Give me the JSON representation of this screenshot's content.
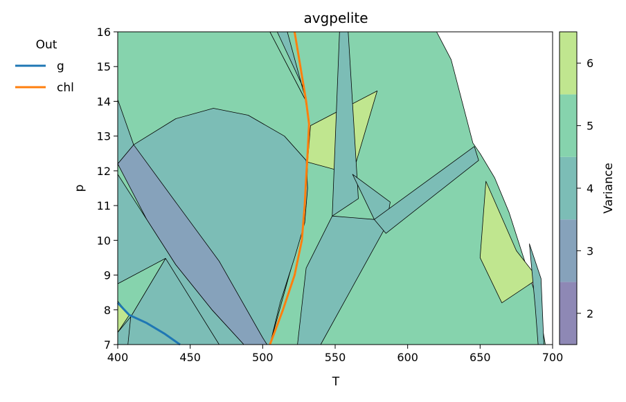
{
  "chart_data": {
    "type": "pseudosection",
    "title": "avgpelite",
    "xlabel": "T",
    "ylabel": "p",
    "xlim": [
      400,
      700
    ],
    "ylim": [
      7,
      16
    ],
    "xticks": [
      "400",
      "450",
      "500",
      "550",
      "600",
      "650",
      "700"
    ],
    "yticks": [
      "7",
      "8",
      "9",
      "10",
      "11",
      "12",
      "13",
      "14",
      "15",
      "16"
    ],
    "legend": {
      "title": "Out",
      "placement": "upper-left-outside",
      "entries": [
        {
          "label": "g",
          "color": "#1f77b4"
        },
        {
          "label": "chl",
          "color": "#ff7f0e"
        }
      ]
    },
    "colorbar": {
      "label": "Variance",
      "ticks": [
        "2",
        "3",
        "4",
        "5",
        "6"
      ],
      "levels": [
        {
          "variance": 2,
          "color": "#8e88b5"
        },
        {
          "variance": 3,
          "color": "#86a2bb"
        },
        {
          "variance": 4,
          "color": "#7cbdb6"
        },
        {
          "variance": 5,
          "color": "#86d3ad"
        },
        {
          "variance": 6,
          "color": "#c0e68f"
        }
      ]
    },
    "series": [
      {
        "name": "g",
        "color": "#1f77b4",
        "points": [
          [
            400,
            8.2
          ],
          [
            408,
            7.85
          ],
          [
            420,
            7.62
          ],
          [
            432,
            7.32
          ],
          [
            443,
            7.0
          ]
        ]
      },
      {
        "name": "chl",
        "color": "#ff7f0e",
        "points": [
          [
            522,
            16.0
          ],
          [
            526,
            15.0
          ],
          [
            530,
            14.0
          ],
          [
            532,
            13.35
          ],
          [
            531,
            12.5
          ],
          [
            530,
            11.8
          ],
          [
            529,
            11.0
          ],
          [
            527,
            10.0
          ],
          [
            522,
            9.0
          ],
          [
            514,
            8.0
          ],
          [
            505,
            7.0
          ]
        ]
      }
    ],
    "fields": [
      {
        "variance": 5,
        "polygon": [
          [
            400,
            16
          ],
          [
            505,
            16
          ],
          [
            530,
            14
          ],
          [
            532,
            13.35
          ],
          [
            531,
            12.2
          ],
          [
            530,
            11
          ],
          [
            525,
            10
          ],
          [
            515,
            8.5
          ],
          [
            505,
            7
          ],
          [
            400,
            7
          ]
        ]
      },
      {
        "variance": 5,
        "polygon": [
          [
            505,
            16
          ],
          [
            580,
            16
          ],
          [
            620,
            16
          ],
          [
            630,
            15.2
          ],
          [
            645,
            12.8
          ],
          [
            650,
            12.5
          ],
          [
            660,
            11.8
          ],
          [
            670,
            10.8
          ],
          [
            680,
            9.5
          ],
          [
            690,
            8.2
          ],
          [
            695,
            7
          ],
          [
            505,
            7
          ],
          [
            515,
            8.5
          ],
          [
            525,
            10
          ],
          [
            530,
            11
          ],
          [
            531,
            12.2
          ],
          [
            532,
            13.35
          ],
          [
            530,
            14
          ]
        ]
      },
      {
        "variance": 4,
        "polygon": [
          [
            400,
            12.2
          ],
          [
            411,
            12.75
          ],
          [
            440,
            13.5
          ],
          [
            466,
            13.8
          ],
          [
            490,
            13.6
          ],
          [
            515,
            13.0
          ],
          [
            530,
            12.3
          ],
          [
            531,
            11.5
          ],
          [
            529,
            10.5
          ],
          [
            522,
            9.5
          ],
          [
            512,
            8.2
          ],
          [
            505,
            7
          ],
          [
            487,
            7
          ],
          [
            465,
            8.0
          ],
          [
            440,
            9.3
          ],
          [
            420,
            10.8
          ],
          [
            400,
            12.2
          ]
        ]
      },
      {
        "variance": 3,
        "polygon": [
          [
            400,
            12.2
          ],
          [
            411,
            12.75
          ],
          [
            440,
            11.1
          ],
          [
            470,
            9.4
          ],
          [
            500,
            7.2
          ],
          [
            503,
            7
          ],
          [
            487,
            7
          ],
          [
            465,
            8.0
          ],
          [
            440,
            9.3
          ],
          [
            420,
            10.6
          ],
          [
            400,
            12.2
          ]
        ]
      },
      {
        "variance": 4,
        "polygon": [
          [
            400,
            11.9
          ],
          [
            420,
            10.6
          ],
          [
            440,
            9.3
          ],
          [
            465,
            8.0
          ],
          [
            487,
            7
          ],
          [
            400,
            7
          ]
        ]
      },
      {
        "variance": 4,
        "polygon": [
          [
            400,
            14.05
          ],
          [
            411,
            12.75
          ],
          [
            400,
            12.2
          ]
        ]
      },
      {
        "variance": 4,
        "polygon": [
          [
            433,
            9.48
          ],
          [
            470,
            7.0
          ],
          [
            407,
            7.0
          ],
          [
            409,
            7.8
          ]
        ]
      },
      {
        "variance": 5,
        "polygon": [
          [
            400,
            8.75
          ],
          [
            433,
            9.48
          ],
          [
            409,
            7.8
          ],
          [
            400,
            7.35
          ]
        ]
      },
      {
        "variance": 6,
        "polygon": [
          [
            400,
            8.25
          ],
          [
            408,
            7.85
          ],
          [
            400,
            7.35
          ]
        ]
      },
      {
        "variance": 6,
        "polygon": [
          [
            533,
            13.3
          ],
          [
            579,
            14.3
          ],
          [
            562,
            11.9
          ],
          [
            531,
            12.25
          ]
        ]
      },
      {
        "variance": 4,
        "polygon": [
          [
            510,
            16
          ],
          [
            517,
            16
          ],
          [
            530,
            14
          ],
          [
            532,
            13.35
          ],
          [
            528,
            14.4
          ]
        ]
      },
      {
        "variance": 4,
        "polygon": [
          [
            553,
            16
          ],
          [
            559,
            16
          ],
          [
            566,
            11.2
          ],
          [
            548,
            10.7
          ]
        ]
      },
      {
        "variance": 4,
        "polygon": [
          [
            562,
            11.9
          ],
          [
            577,
            10.6
          ],
          [
            548,
            10.7
          ],
          [
            530,
            9.2
          ],
          [
            524,
            7
          ],
          [
            540,
            7
          ],
          [
            585,
            10.4
          ],
          [
            588,
            11.1
          ]
        ]
      },
      {
        "variance": 4,
        "polygon": [
          [
            577,
            10.6
          ],
          [
            646,
            12.7
          ],
          [
            649,
            12.3
          ],
          [
            585,
            10.2
          ]
        ]
      },
      {
        "variance": 6,
        "polygon": [
          [
            654,
            11.7
          ],
          [
            675,
            9.7
          ],
          [
            690,
            8.9
          ],
          [
            665,
            8.2
          ],
          [
            650,
            9.5
          ]
        ]
      },
      {
        "variance": 4,
        "polygon": [
          [
            684,
            9.9
          ],
          [
            688,
            8.1
          ],
          [
            690,
            7.0
          ],
          [
            694,
            7.0
          ],
          [
            692,
            8.9
          ]
        ]
      }
    ]
  }
}
